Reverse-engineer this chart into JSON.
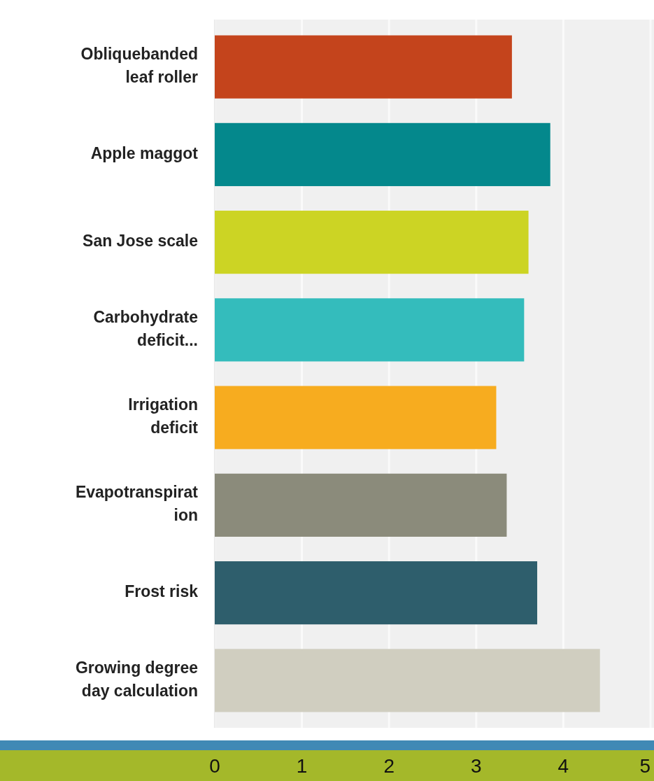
{
  "chart_data": {
    "type": "bar",
    "orientation": "horizontal",
    "categories": [
      "Obliquebanded leaf roller",
      "Apple maggot",
      "San Jose scale",
      "Carbohydrate deficit...",
      "Irrigation deficit",
      "Evapotranspiration",
      "Frost risk",
      "Growing degree day calculation"
    ],
    "values": [
      3.41,
      3.85,
      3.6,
      3.55,
      3.23,
      3.35,
      3.7,
      4.42
    ],
    "colors": [
      "#c4441c",
      "#04888c",
      "#ccd424",
      "#34bcbc",
      "#f7ac1f",
      "#8b8b7b",
      "#2e5e6c",
      "#d0cec0"
    ],
    "xlim": [
      0,
      5
    ],
    "xticks": [
      0,
      1,
      2,
      3,
      4,
      5
    ],
    "grid": "x"
  }
}
